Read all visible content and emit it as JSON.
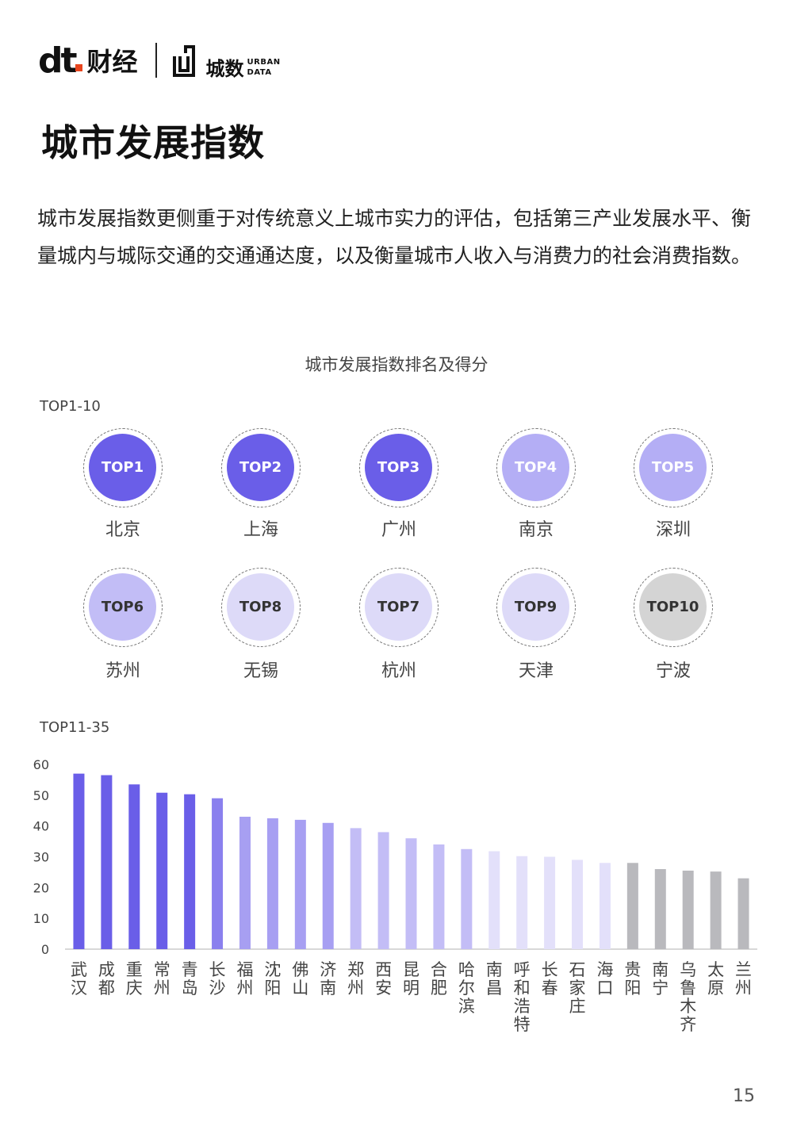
{
  "header": {
    "brand_dt": "dt",
    "brand_name": "财经",
    "brand_cs": "城数",
    "brand_urban_1": "URBAN",
    "brand_urban_2": "DATA"
  },
  "page_title": "城市发展指数",
  "intro": "城市发展指数更侧重于对传统意义上城市实力的评估，包括第三产业发展水平、衡量城内与城际交通的交通通达度，以及衡量城市人收入与消费力的社会消费指数。",
  "chart_title": "城市发展指数排名及得分",
  "top10": {
    "label": "TOP1-10",
    "items": [
      {
        "rank": "TOP1",
        "city": "北京",
        "fill": "#6a5ee8",
        "text_color": "#ffffff"
      },
      {
        "rank": "TOP2",
        "city": "上海",
        "fill": "#6a5ee8",
        "text_color": "#ffffff"
      },
      {
        "rank": "TOP3",
        "city": "广州",
        "fill": "#6a5ee8",
        "text_color": "#ffffff"
      },
      {
        "rank": "TOP4",
        "city": "南京",
        "fill": "#b4aef5",
        "text_color": "#ffffff"
      },
      {
        "rank": "TOP5",
        "city": "深圳",
        "fill": "#b4aef5",
        "text_color": "#ffffff"
      },
      {
        "rank": "TOP6",
        "city": "苏州",
        "fill": "#c2bdf6",
        "text_color": "#333333"
      },
      {
        "rank": "TOP8",
        "city": "无锡",
        "fill": "#dddaf8",
        "text_color": "#333333"
      },
      {
        "rank": "TOP7",
        "city": "杭州",
        "fill": "#dddaf8",
        "text_color": "#333333"
      },
      {
        "rank": "TOP9",
        "city": "天津",
        "fill": "#dddaf8",
        "text_color": "#333333"
      },
      {
        "rank": "TOP10",
        "city": "宁波",
        "fill": "#d4d4d4",
        "text_color": "#333333"
      }
    ]
  },
  "top11_35_label": "TOP11-35",
  "chart_data": {
    "type": "bar",
    "title": "城市发展指数排名及得分",
    "xlabel": "",
    "ylabel": "",
    "ylim": [
      0,
      60
    ],
    "yticks": [
      0,
      10,
      20,
      30,
      40,
      50,
      60
    ],
    "grid": false,
    "categories": [
      "武汉",
      "成都",
      "重庆",
      "常州",
      "青岛",
      "长沙",
      "福州",
      "沈阳",
      "佛山",
      "济南",
      "郑州",
      "西安",
      "昆明",
      "合肥",
      "哈尔滨",
      "南昌",
      "呼和浩特",
      "长春",
      "石家庄",
      "海口",
      "贵阳",
      "南宁",
      "乌鲁木齐",
      "太原",
      "兰州"
    ],
    "values": [
      57,
      56.5,
      53.5,
      50.8,
      50.3,
      49,
      43,
      42.5,
      42,
      41,
      39.3,
      38,
      36,
      34,
      32.5,
      31.8,
      30.2,
      30,
      29,
      28,
      28,
      26,
      25.5,
      25.2,
      23
    ],
    "colors": [
      "#6a5ee8",
      "#6a5ee8",
      "#6a5ee8",
      "#6a5ee8",
      "#6a5ee8",
      "#8a80ee",
      "#a79ff2",
      "#a79ff2",
      "#a79ff2",
      "#a79ff2",
      "#c3bdf6",
      "#c3bdf6",
      "#c3bdf6",
      "#c3bdf6",
      "#c3bdf6",
      "#e3e0fa",
      "#e3e0fa",
      "#e3e0fa",
      "#e3e0fa",
      "#e3e0fa",
      "#b9b9bd",
      "#b9b9bd",
      "#b9b9bd",
      "#b9b9bd",
      "#b9b9bd"
    ]
  },
  "page_number": "15"
}
